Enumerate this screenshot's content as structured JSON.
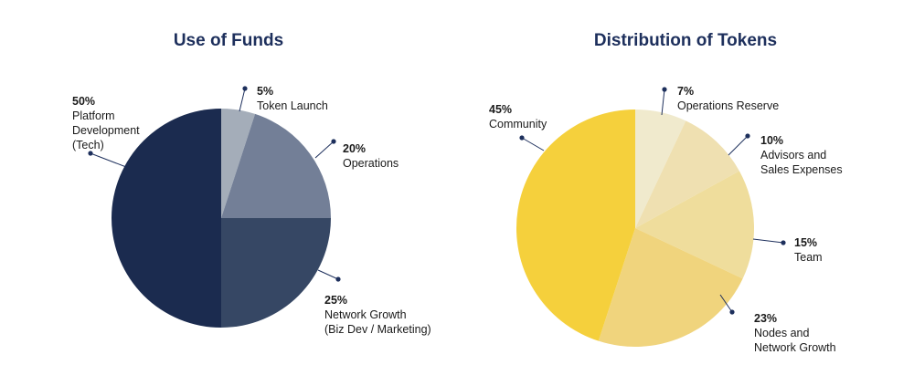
{
  "chart_data": [
    {
      "type": "pie",
      "title": "Use of Funds",
      "categories": [
        "Token Launch",
        "Operations",
        "Network Growth (Biz Dev / Marketing)",
        "Platform Development (Tech)"
      ],
      "values": [
        5,
        20,
        25,
        50
      ],
      "value_labels": [
        "5%",
        "20%",
        "25%",
        "50%"
      ],
      "label_lines": [
        [
          "Token Launch"
        ],
        [
          "Operations"
        ],
        [
          "Network Growth",
          "(Biz Dev / Marketing)"
        ],
        [
          "Platform",
          "Development",
          "(Tech)"
        ]
      ],
      "colors": [
        "#a4adb9",
        "#737f97",
        "#364764",
        "#1b2b4f"
      ],
      "start_angle_deg": 0,
      "direction": "clockwise",
      "legend": "none"
    },
    {
      "type": "pie",
      "title": "Distribution of Tokens",
      "categories": [
        "Operations Reserve",
        "Advisors and Sales Expenses",
        "Team",
        "Nodes and Network Growth",
        "Community"
      ],
      "values": [
        7,
        10,
        15,
        23,
        45
      ],
      "value_labels": [
        "7%",
        "10%",
        "15%",
        "23%",
        "45%"
      ],
      "label_lines": [
        [
          "Operations Reserve"
        ],
        [
          "Advisors and",
          "Sales Expenses"
        ],
        [
          "Team"
        ],
        [
          "Nodes and",
          "Network Growth"
        ],
        [
          "Community"
        ]
      ],
      "colors": [
        "#f0eacd",
        "#efe0b1",
        "#efdd9c",
        "#f0d47d",
        "#f5d03c"
      ],
      "start_angle_deg": 0,
      "direction": "clockwise",
      "legend": "none"
    }
  ],
  "styles": {
    "title_color": "#1d2f5c",
    "leader_color": "#1d2f5c",
    "slice_border_color": "#ffffff"
  }
}
